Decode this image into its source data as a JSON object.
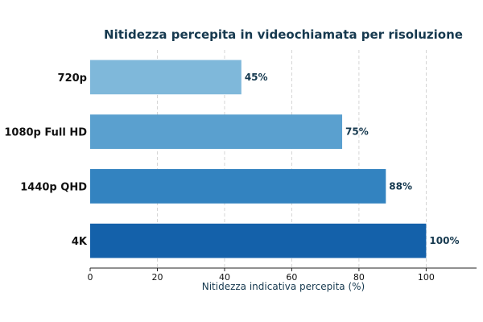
{
  "chart_data": {
    "type": "bar",
    "orientation": "horizontal",
    "title": "Nitidezza percepita in videochiamata per risoluzione",
    "xlabel": "Nitidezza indicativa percepita (%)",
    "ylabel": "",
    "categories": [
      "720p",
      "1080p Full HD",
      "1440p QHD",
      "4K"
    ],
    "values": [
      45,
      75,
      88,
      100
    ],
    "value_labels": [
      "45%",
      "75%",
      "88%",
      "100%"
    ],
    "bar_colors": [
      "#7fb8da",
      "#5aa0cf",
      "#3383c0",
      "#1461aa"
    ],
    "xlim": [
      0,
      115
    ],
    "xticks": [
      0,
      20,
      40,
      60,
      80,
      100
    ],
    "xtick_labels": [
      "0",
      "20",
      "40",
      "60",
      "80",
      "100"
    ],
    "grid": "vertical dashed",
    "legend": "none"
  }
}
